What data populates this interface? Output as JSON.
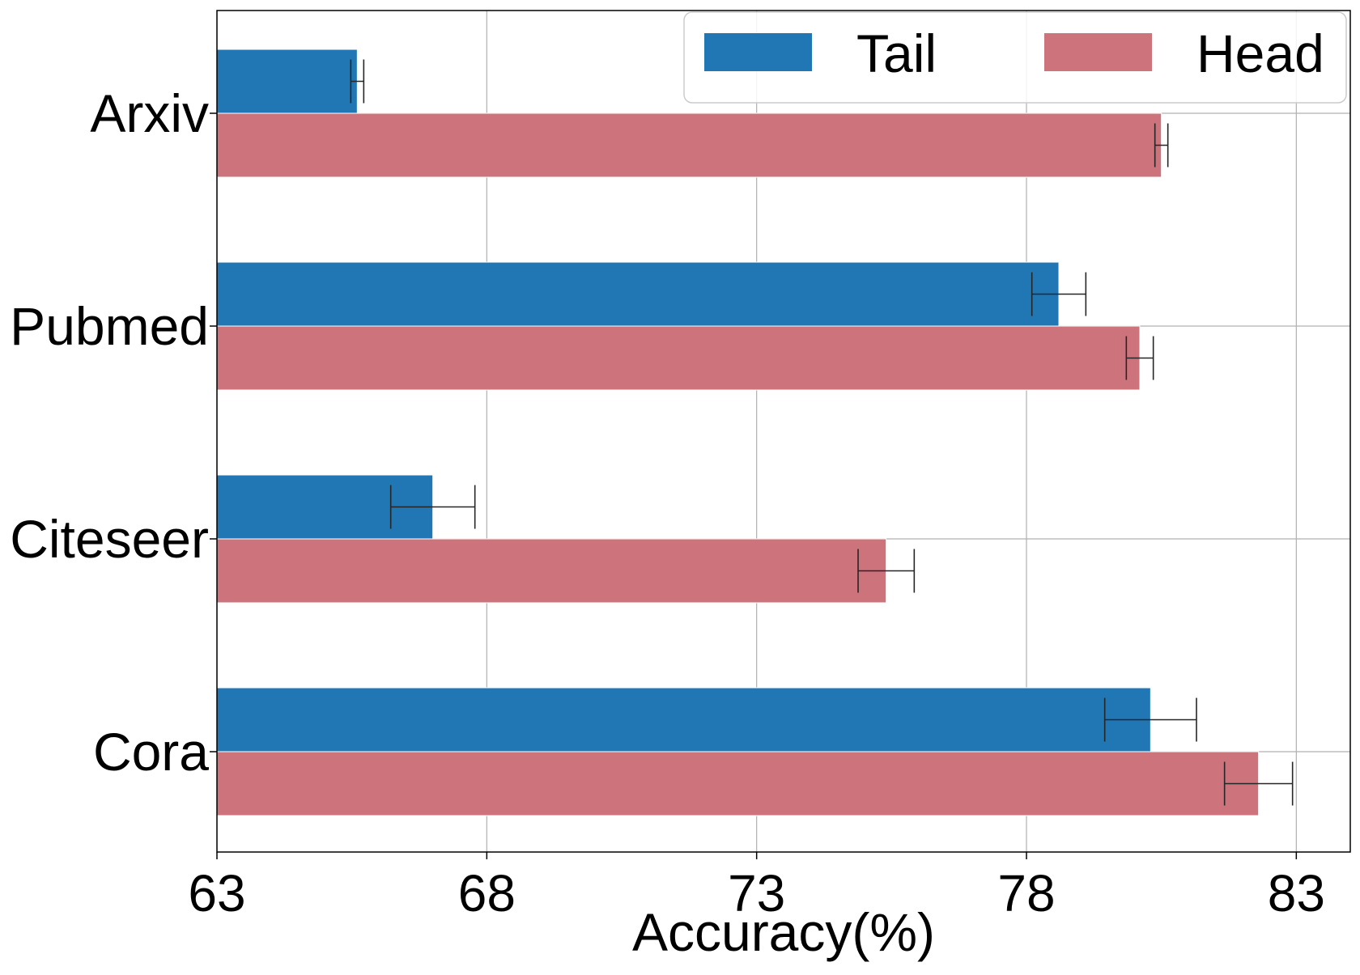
{
  "chart_data": {
    "type": "bar",
    "orientation": "horizontal",
    "xlabel": "Accuracy(%)",
    "ylabel": "",
    "title": "",
    "xlim": [
      63,
      84
    ],
    "xticks": [
      63,
      68,
      73,
      78,
      83
    ],
    "grid": true,
    "legend_position": "top-right",
    "categories": [
      "Arxiv",
      "Pubmed",
      "Citeseer",
      "Cora"
    ],
    "series": [
      {
        "name": "Tail",
        "color": "#2077b4",
        "values": [
          65.6,
          78.6,
          67.0,
          80.3
        ],
        "errors": [
          0.12,
          0.5,
          0.78,
          0.85
        ]
      },
      {
        "name": "Head",
        "color": "#cd737b",
        "values": [
          80.5,
          80.1,
          75.4,
          82.3
        ],
        "errors": [
          0.12,
          0.25,
          0.52,
          0.63
        ]
      }
    ]
  }
}
